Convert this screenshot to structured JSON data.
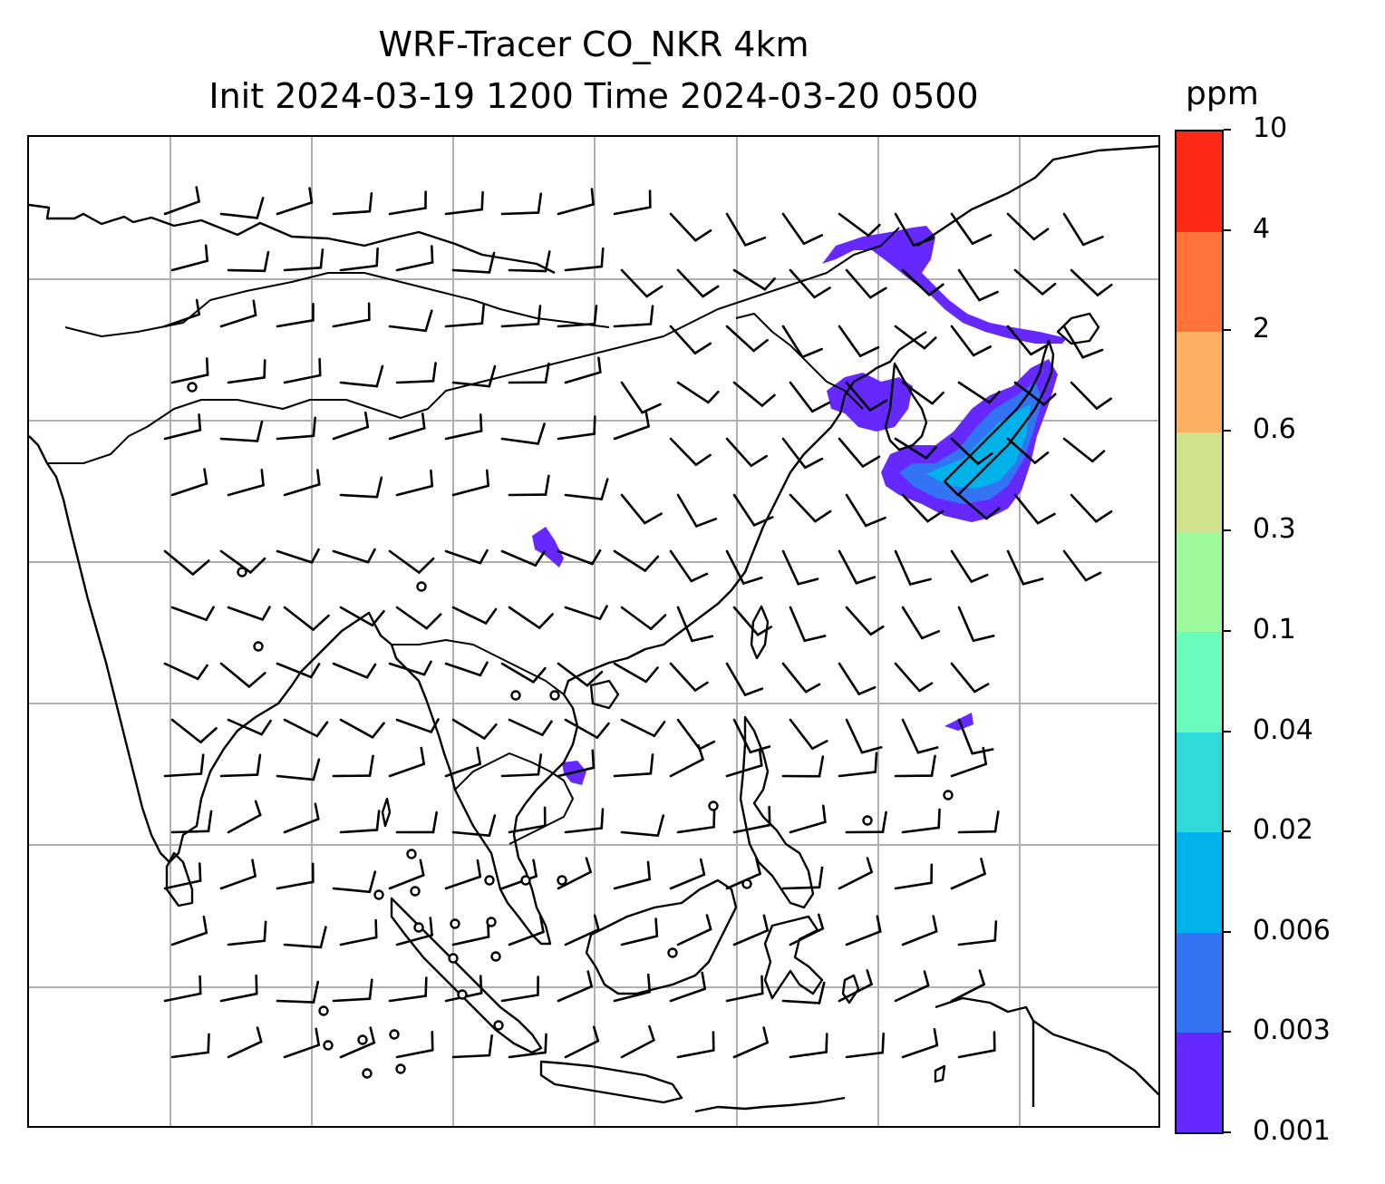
{
  "title": {
    "line1": "WRF-Tracer CO_NKR 4km",
    "line2": "Init 2024-03-19 1200 Time 2024-03-20 0500"
  },
  "colorbar": {
    "unit": "ppm",
    "ticks": [
      "0.001",
      "0.003",
      "0.006",
      "0.02",
      "0.04",
      "0.1",
      "0.3",
      "0.6",
      "2",
      "4",
      "10"
    ],
    "colors": [
      "#6528ff",
      "#3374f5",
      "#00b2ea",
      "#2fdbd7",
      "#6afcbd",
      "#9df99c",
      "#d0e28b",
      "#fdb062",
      "#ff733b",
      "#ff2819"
    ]
  },
  "map": {
    "gridlines": true,
    "gridline_color": "#b0b0b0",
    "coastline_color": "#000000",
    "plume_color": "#6528ff",
    "plume_core_color": "#3374f5",
    "plume_inner_color": "#00b2ea"
  }
}
